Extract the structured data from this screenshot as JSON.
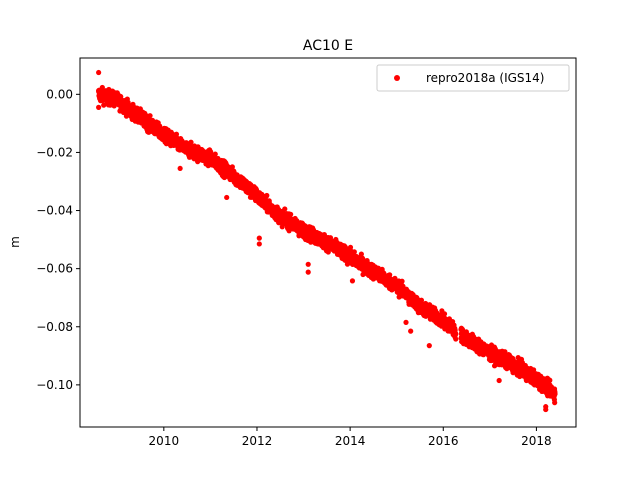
{
  "chart_data": {
    "type": "scatter",
    "title": "AC10 E",
    "xlabel": "",
    "ylabel": "m",
    "xlim": [
      2008.2,
      2018.85
    ],
    "ylim": [
      -0.1145,
      0.0125
    ],
    "xticks": [
      2010,
      2012,
      2014,
      2016,
      2018
    ],
    "xtick_labels": [
      "2010",
      "2012",
      "2014",
      "2016",
      "2018"
    ],
    "yticks": [
      0.0,
      -0.02,
      -0.04,
      -0.06,
      -0.08,
      -0.1
    ],
    "ytick_labels": [
      "0.00",
      "−0.02",
      "−0.04",
      "−0.06",
      "−0.08",
      "−0.10"
    ],
    "grid": false,
    "legend_position": "top-right",
    "series": [
      {
        "name": "repro2018a (IGS14)",
        "color": "#ff0000",
        "marker": "circle",
        "x_range": [
          2008.6,
          2018.4
        ],
        "trend": {
          "x": [
            2008.6,
            2009.0,
            2009.5,
            2010.0,
            2010.5,
            2011.0,
            2011.5,
            2012.0,
            2012.5,
            2013.0,
            2013.5,
            2014.0,
            2014.5,
            2015.0,
            2015.5,
            2016.0,
            2016.3,
            2016.5,
            2017.0,
            2017.5,
            2018.0,
            2018.4
          ],
          "y": [
            0.0,
            -0.002,
            -0.008,
            -0.014,
            -0.019,
            -0.022,
            -0.028,
            -0.035,
            -0.042,
            -0.047,
            -0.051,
            -0.056,
            -0.061,
            -0.066,
            -0.073,
            -0.078,
            -0.082,
            -0.084,
            -0.089,
            -0.093,
            -0.098,
            -0.103
          ]
        },
        "outliers": [
          {
            "x": 2008.6,
            "y": 0.0075
          },
          {
            "x": 2008.6,
            "y": -0.0045
          },
          {
            "x": 2012.05,
            "y": -0.0515
          },
          {
            "x": 2012.05,
            "y": -0.0495
          },
          {
            "x": 2013.1,
            "y": -0.0612
          },
          {
            "x": 2013.1,
            "y": -0.0585
          },
          {
            "x": 2014.05,
            "y": -0.0642
          },
          {
            "x": 2015.2,
            "y": -0.0785
          },
          {
            "x": 2015.3,
            "y": -0.0815
          },
          {
            "x": 2015.7,
            "y": -0.0865
          },
          {
            "x": 2016.25,
            "y": -0.0835
          },
          {
            "x": 2017.2,
            "y": -0.0985
          },
          {
            "x": 2017.5,
            "y": -0.0958
          },
          {
            "x": 2018.2,
            "y": -0.1075
          },
          {
            "x": 2018.2,
            "y": -0.1085
          },
          {
            "x": 2011.35,
            "y": -0.0355
          },
          {
            "x": 2010.35,
            "y": -0.0255
          }
        ]
      }
    ]
  }
}
